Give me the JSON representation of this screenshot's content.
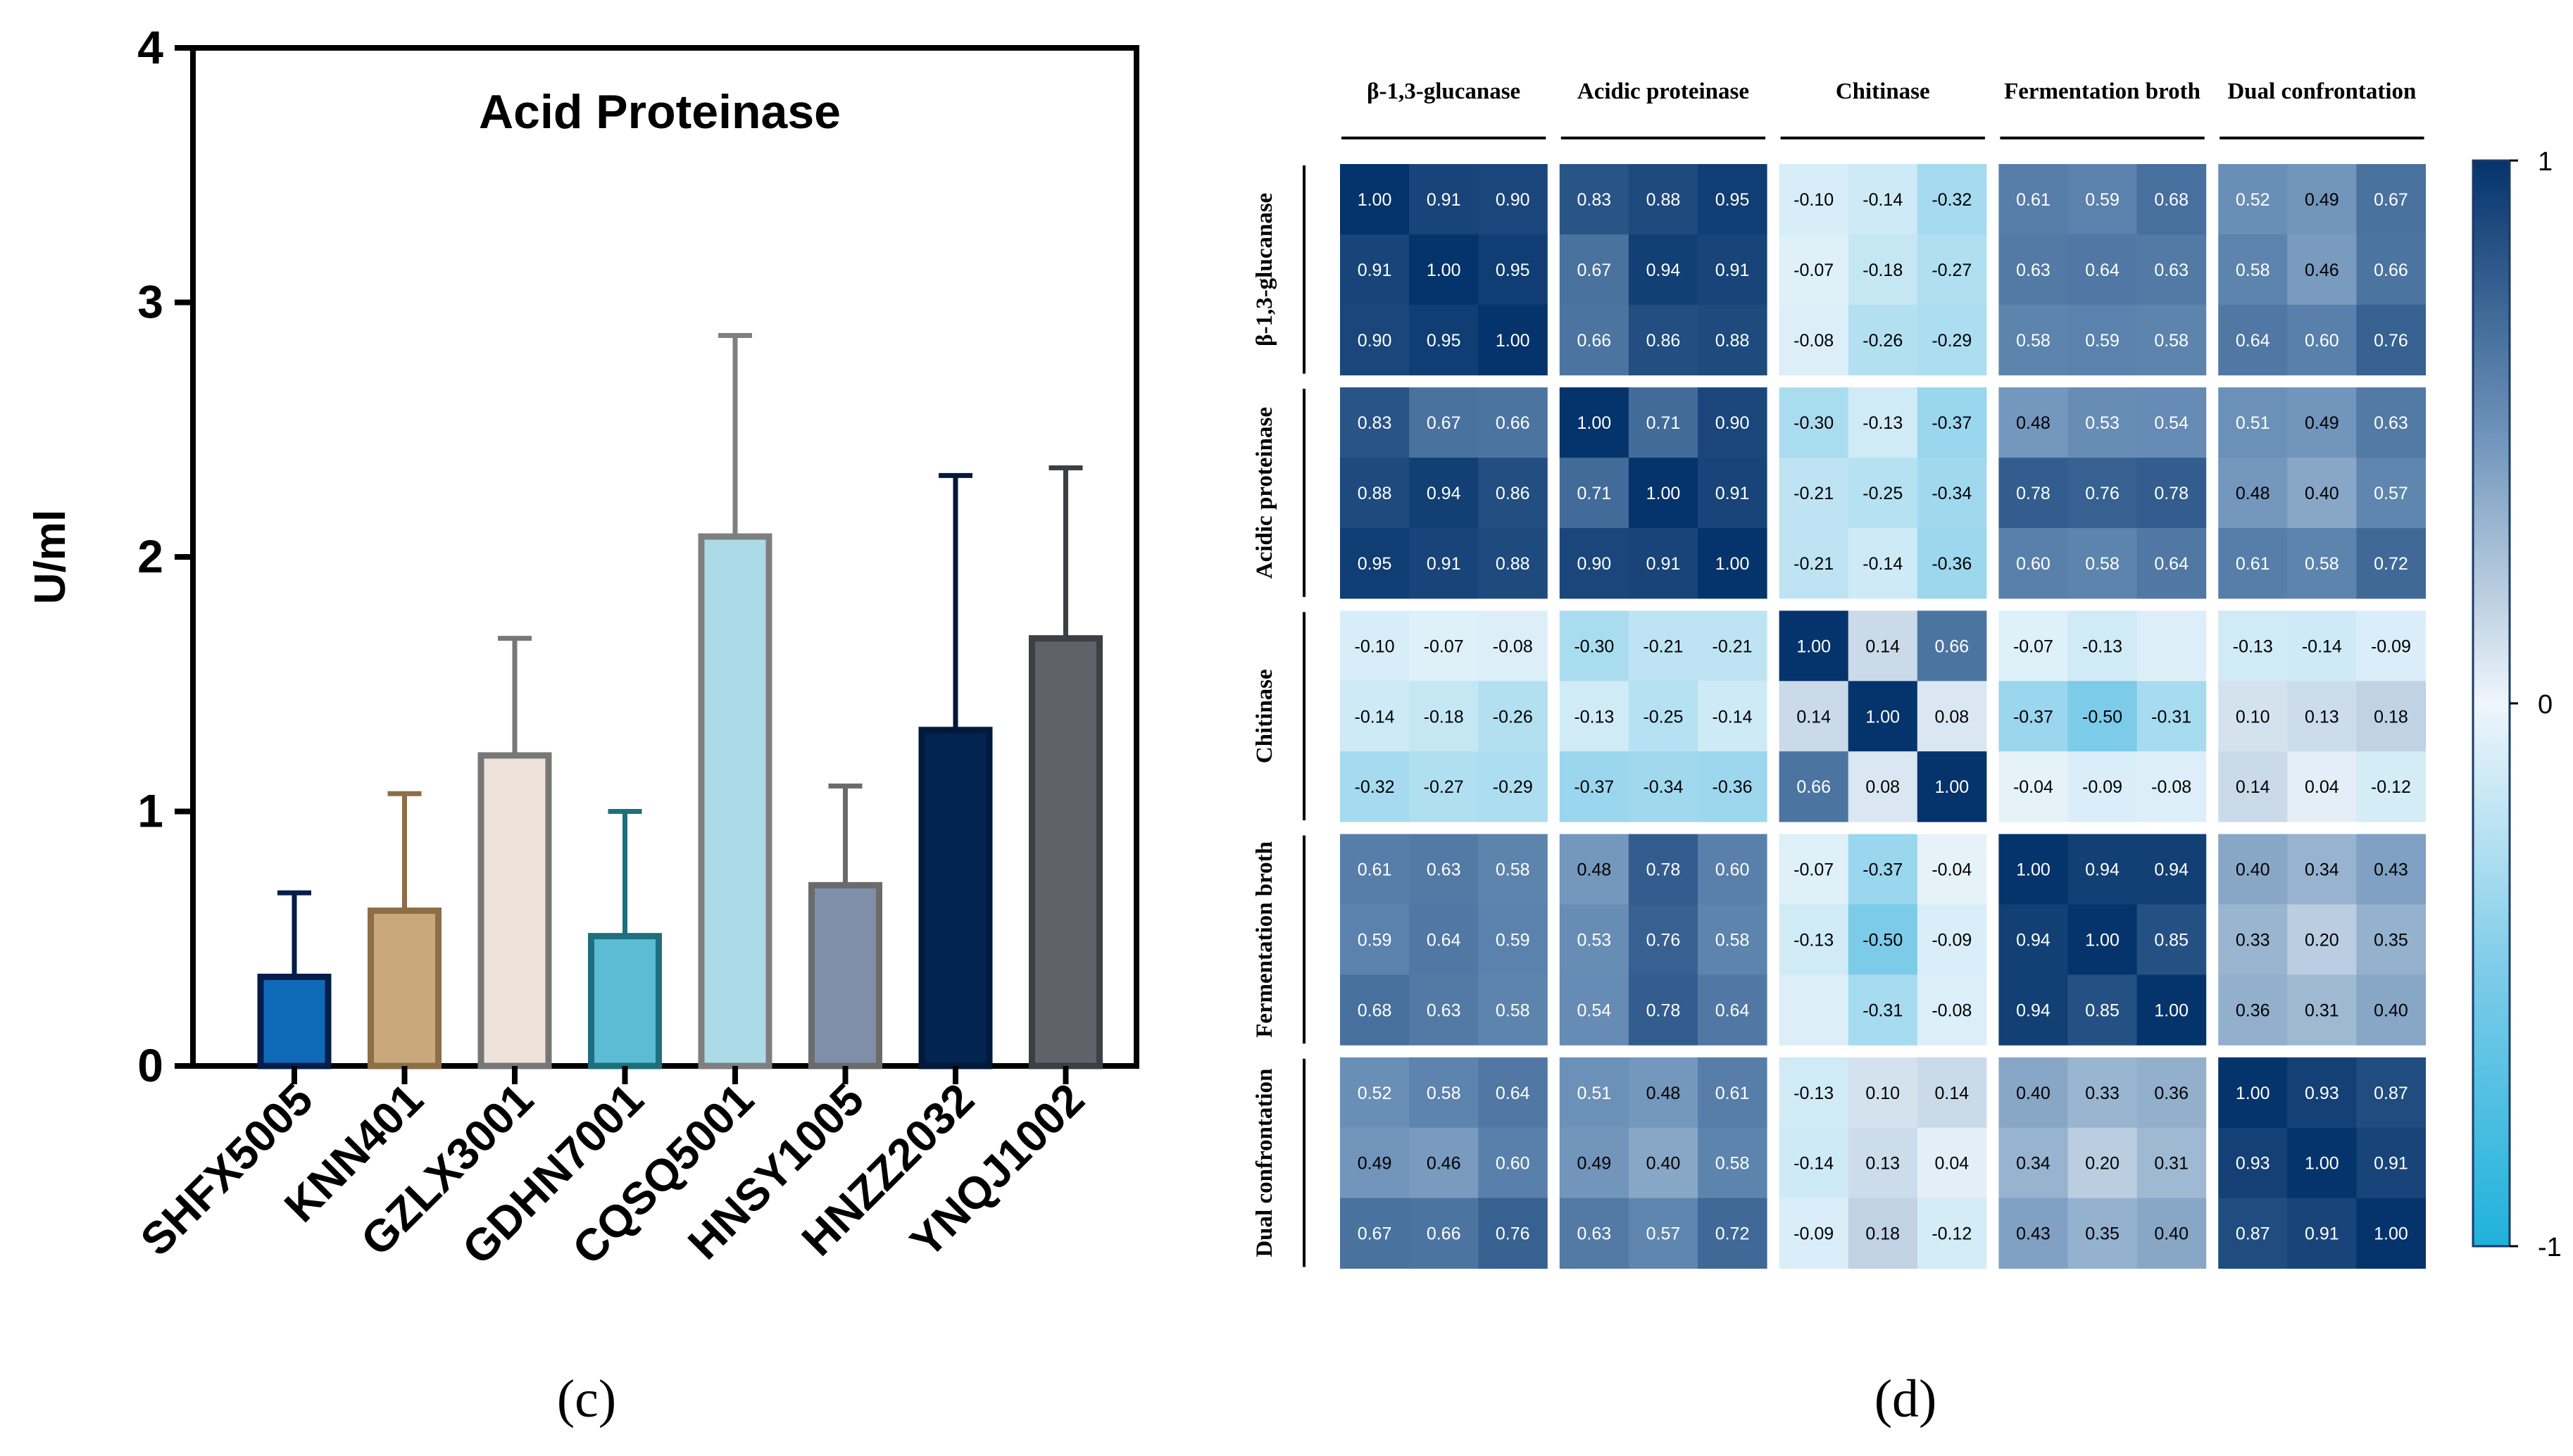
{
  "chart_data": [
    {
      "type": "bar",
      "panel_label": "(c)",
      "title": "Acid Proteinase",
      "xlabel": "",
      "ylabel": "U/ml",
      "ylim": [
        0,
        4
      ],
      "yticks": [
        0,
        1,
        2,
        3,
        4
      ],
      "grid": false,
      "categories": [
        "SHFX5005",
        "KNN401",
        "GZLX3001",
        "GDHN7001",
        "CQSQ5001",
        "HNSY1005",
        "HNZZ2032",
        "YNQJ1002"
      ],
      "values": [
        0.35,
        0.61,
        1.22,
        0.51,
        2.08,
        0.71,
        1.32,
        1.68
      ],
      "error_bars": [
        0.33,
        0.46,
        0.46,
        0.49,
        0.79,
        0.39,
        1.0,
        0.67
      ],
      "bar_fill_colors": [
        "#0e6ab6",
        "#c9a97b",
        "#ede1d9",
        "#5cbcd3",
        "#abdbe6",
        "#7f8fa9",
        "#022451",
        "#5f6269"
      ],
      "bar_edge_colors": [
        "#041d4a",
        "#8d6e47",
        "#777777",
        "#1e6f7e",
        "#7f7f7f",
        "#6b6b6b",
        "#011a3b",
        "#3d3f44"
      ]
    },
    {
      "type": "heatmap",
      "panel_label": "(d)",
      "groups": [
        "β-1,3-glucanase",
        "Acidic proteinase",
        "Chitinase",
        "Fermentation broth",
        "Dual confrontation"
      ],
      "group_size": 3,
      "colorbar": {
        "min": -1,
        "max": 1,
        "ticks": [
          "1",
          "0",
          "-1"
        ]
      },
      "matrix": [
        [
          "1.00",
          "0.91",
          "0.90",
          "0.83",
          "0.88",
          "0.95",
          "-0.10",
          "-0.14",
          "-0.32",
          "0.61",
          "0.59",
          "0.68",
          "0.52",
          "0.49",
          "0.67"
        ],
        [
          "0.91",
          "1.00",
          "0.95",
          "0.67",
          "0.94",
          "0.91",
          "-0.07",
          "-0.18",
          "-0.27",
          "0.63",
          "0.64",
          "0.63",
          "0.58",
          "0.46",
          "0.66"
        ],
        [
          "0.90",
          "0.95",
          "1.00",
          "0.66",
          "0.86",
          "0.88",
          "-0.08",
          "-0.26",
          "-0.29",
          "0.58",
          "0.59",
          "0.58",
          "0.64",
          "0.60",
          "0.76"
        ],
        [
          "0.83",
          "0.67",
          "0.66",
          "1.00",
          "0.71",
          "0.90",
          "-0.30",
          "-0.13",
          "-0.37",
          "0.48",
          "0.53",
          "0.54",
          "0.51",
          "0.49",
          "0.63"
        ],
        [
          "0.88",
          "0.94",
          "0.86",
          "0.71",
          "1.00",
          "0.91",
          "-0.21",
          "-0.25",
          "-0.34",
          "0.78",
          "0.76",
          "0.78",
          "0.48",
          "0.40",
          "0.57"
        ],
        [
          "0.95",
          "0.91",
          "0.88",
          "0.90",
          "0.91",
          "1.00",
          "-0.21",
          "-0.14",
          "-0.36",
          "0.60",
          "0.58",
          "0.64",
          "0.61",
          "0.58",
          "0.72"
        ],
        [
          "-0.10",
          "-0.07",
          "-0.08",
          "-0.30",
          "-0.21",
          "-0.21",
          "1.00",
          "0.14",
          "0.66",
          "-0.07",
          "-0.13",
          "",
          "-0.13",
          "-0.14",
          "-0.09"
        ],
        [
          "-0.14",
          "-0.18",
          "-0.26",
          "-0.13",
          "-0.25",
          "-0.14",
          "0.14",
          "1.00",
          "0.08",
          "-0.37",
          "-0.50",
          "-0.31",
          "0.10",
          "0.13",
          "0.18"
        ],
        [
          "-0.32",
          "-0.27",
          "-0.29",
          "-0.37",
          "-0.34",
          "-0.36",
          "0.66",
          "0.08",
          "1.00",
          "-0.04",
          "-0.09",
          "-0.08",
          "0.14",
          "0.04",
          "-0.12"
        ],
        [
          "0.61",
          "0.63",
          "0.58",
          "0.48",
          "0.78",
          "0.60",
          "-0.07",
          "-0.37",
          "-0.04",
          "1.00",
          "0.94",
          "0.94",
          "0.40",
          "0.34",
          "0.43"
        ],
        [
          "0.59",
          "0.64",
          "0.59",
          "0.53",
          "0.76",
          "0.58",
          "-0.13",
          "-0.50",
          "-0.09",
          "0.94",
          "1.00",
          "0.85",
          "0.33",
          "0.20",
          "0.35"
        ],
        [
          "0.68",
          "0.63",
          "0.58",
          "0.54",
          "0.78",
          "0.64",
          "",
          "-0.31",
          "-0.08",
          "0.94",
          "0.85",
          "1.00",
          "0.36",
          "0.31",
          "0.40"
        ],
        [
          "0.52",
          "0.58",
          "0.64",
          "0.51",
          "0.48",
          "0.61",
          "-0.13",
          "0.10",
          "0.14",
          "0.40",
          "0.33",
          "0.36",
          "1.00",
          "0.93",
          "0.87"
        ],
        [
          "0.49",
          "0.46",
          "0.60",
          "0.49",
          "0.40",
          "0.58",
          "-0.14",
          "0.13",
          "0.04",
          "0.34",
          "0.20",
          "0.31",
          "0.93",
          "1.00",
          "0.91"
        ],
        [
          "0.67",
          "0.66",
          "0.76",
          "0.63",
          "0.57",
          "0.72",
          "-0.09",
          "0.18",
          "-0.12",
          "0.43",
          "0.35",
          "0.40",
          "0.87",
          "0.91",
          "1.00"
        ]
      ],
      "missing_cell_fill_values": {
        "6-11": -0.08,
        "11-6": -0.08
      }
    }
  ]
}
